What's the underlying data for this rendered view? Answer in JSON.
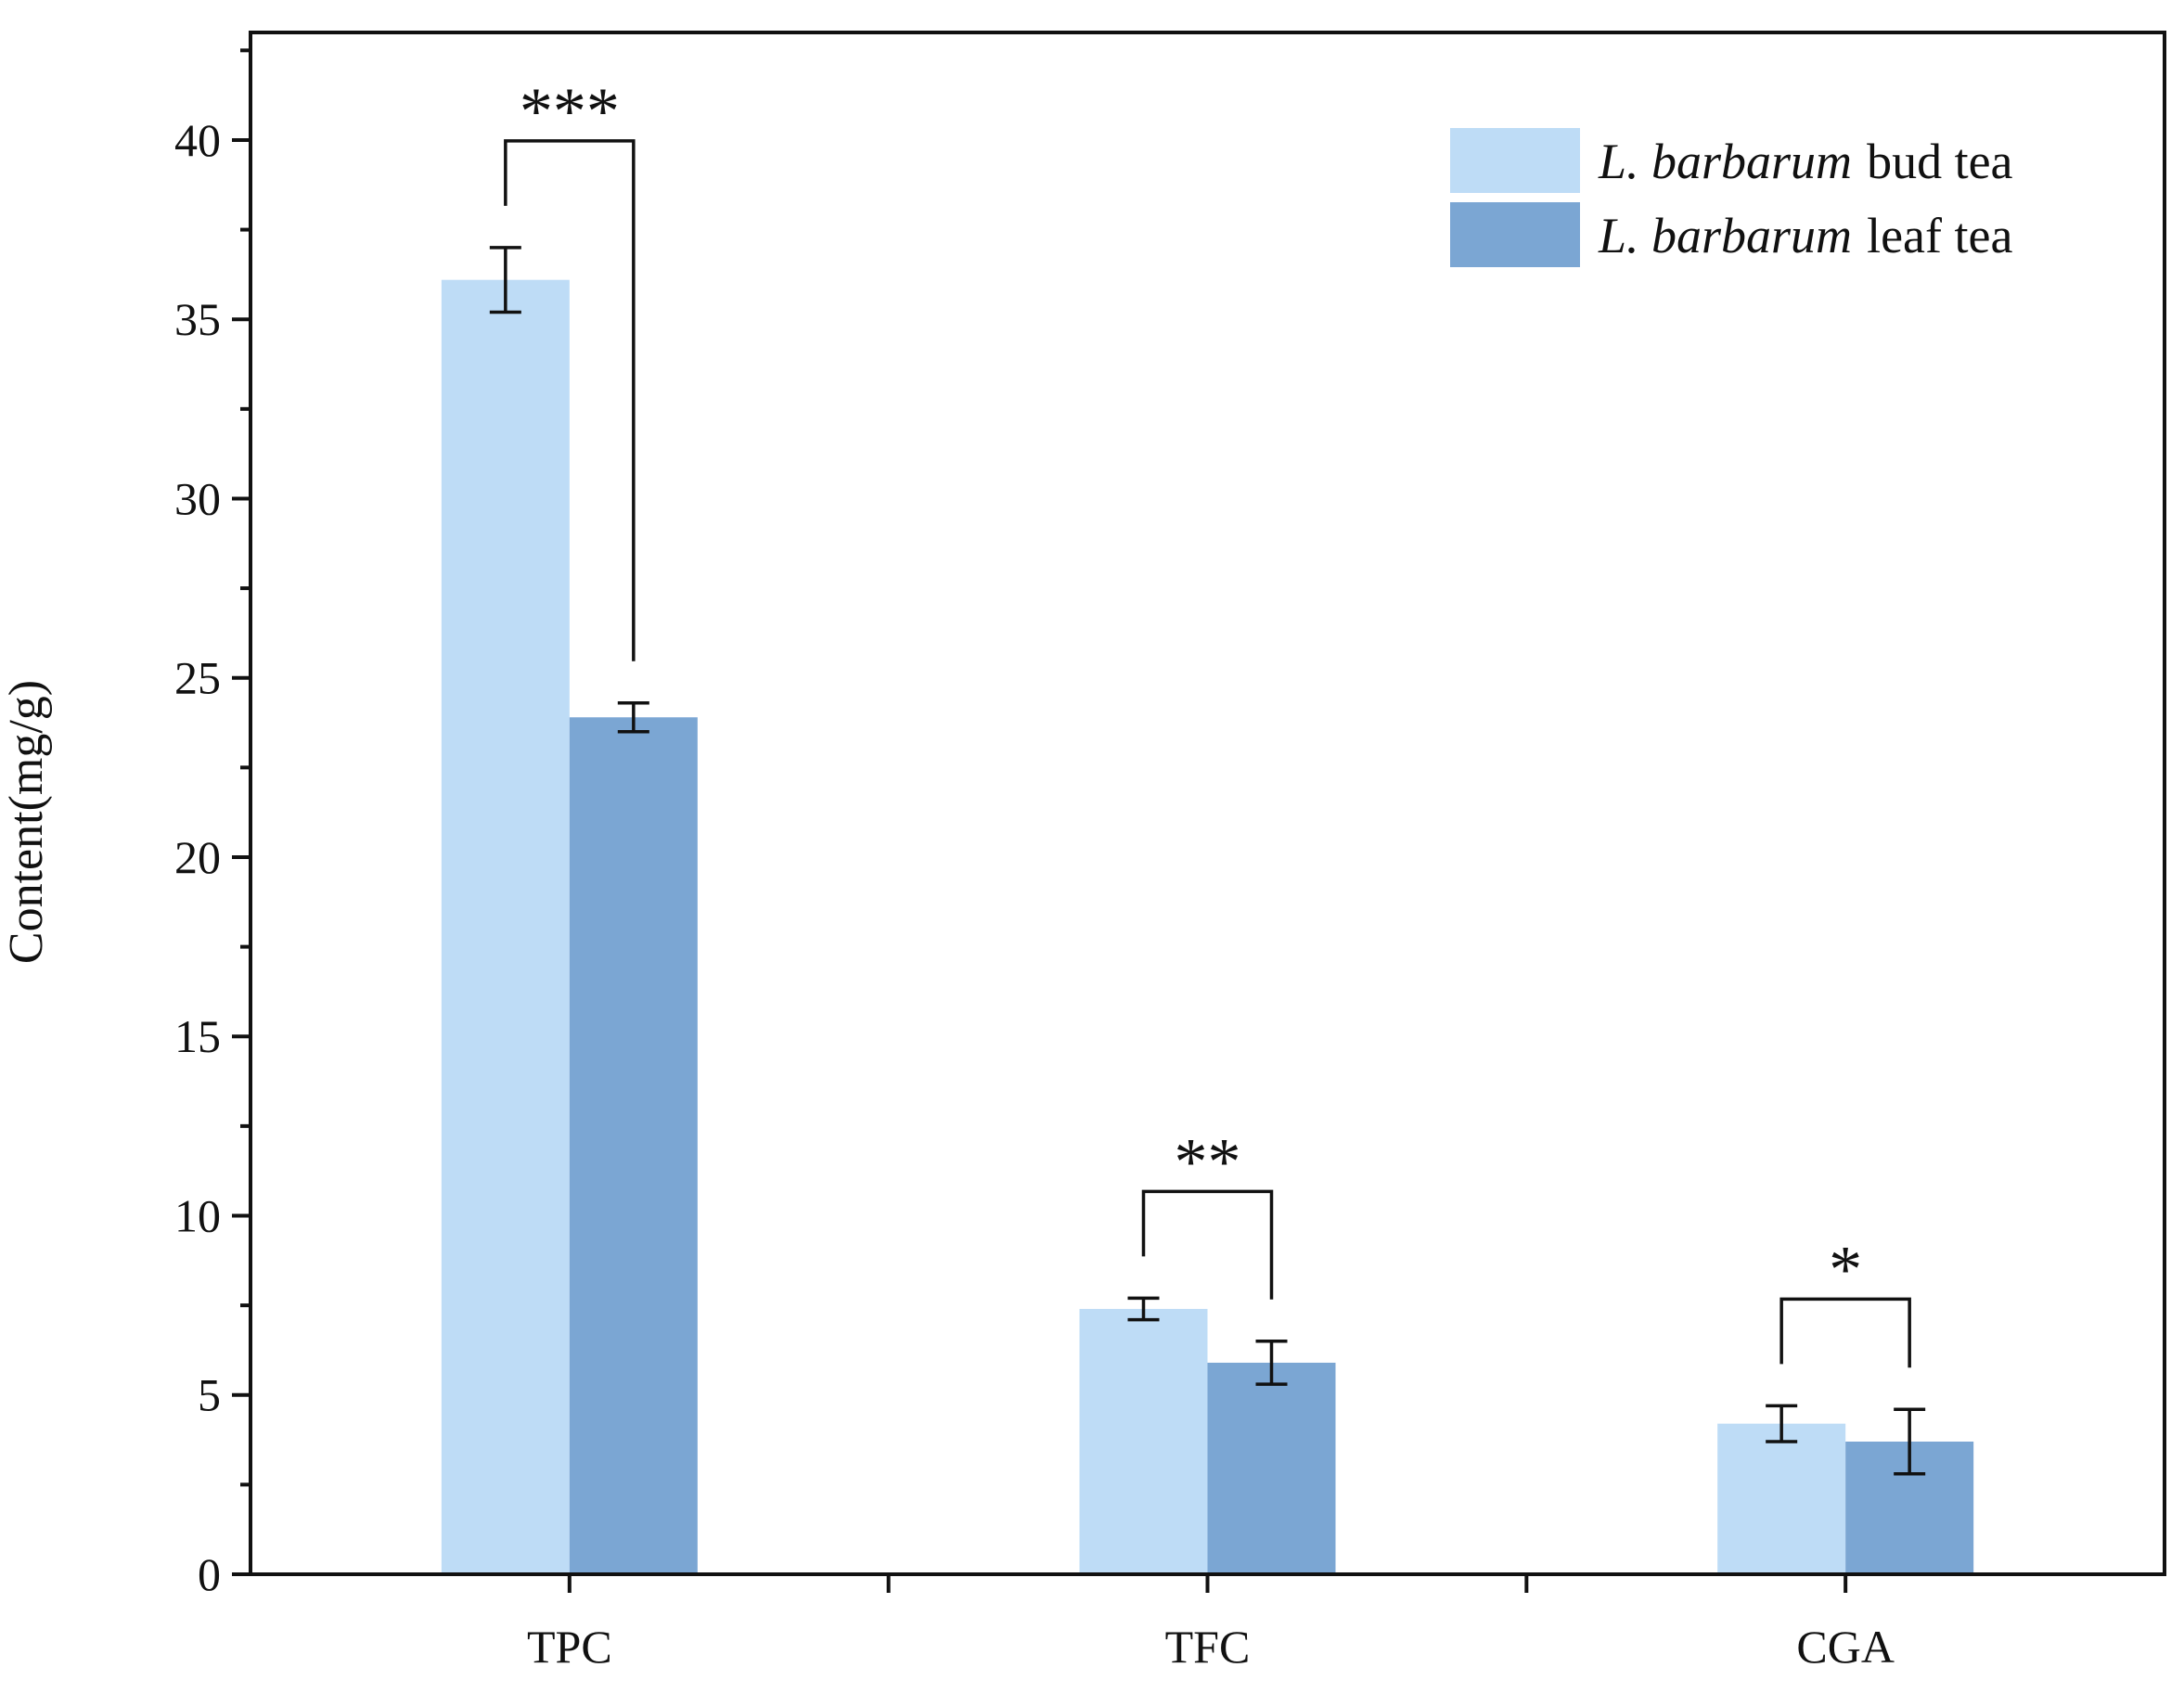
{
  "chart_data": {
    "type": "bar",
    "categories": [
      "TPC",
      "TFC",
      "CGA"
    ],
    "series": [
      {
        "name_species": "L. barbarum",
        "name_suffix": "bud tea",
        "color": "#bedcf6",
        "values": [
          36.1,
          7.4,
          4.2
        ],
        "errors": [
          0.9,
          0.3,
          0.5
        ]
      },
      {
        "name_species": "L. barbarum",
        "name_suffix": "leaf tea",
        "color": "#7ba6d3",
        "values": [
          23.9,
          5.9,
          3.7
        ],
        "errors": [
          0.4,
          0.6,
          0.9
        ]
      }
    ],
    "significance": [
      "***",
      "**",
      "*"
    ],
    "ylabel": "Content(mg/g)",
    "xlabel": "",
    "ylim": [
      0,
      43
    ],
    "yticks": [
      0,
      5,
      10,
      15,
      20,
      25,
      30,
      35,
      40
    ],
    "yminor_step": 2.5,
    "grid": false,
    "legend_position": "top-right"
  }
}
